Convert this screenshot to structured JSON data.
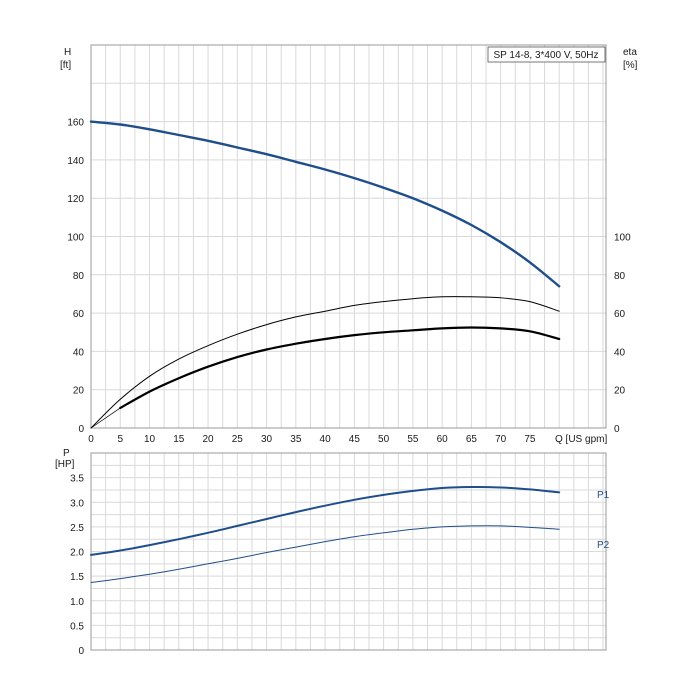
{
  "chart_data": [
    {
      "type": "line",
      "title": "SP 14-8, 3*400 V, 50Hz",
      "x_axis": {
        "label": "Q [US gpm]",
        "min": 0,
        "max": 88,
        "ticks": [
          0,
          5,
          10,
          15,
          20,
          25,
          30,
          35,
          40,
          45,
          50,
          55,
          60,
          65,
          70,
          75
        ]
      },
      "y_left": {
        "label": "H",
        "unit": "[ft]",
        "min": 0,
        "max": 200,
        "ticks": [
          0,
          20,
          40,
          60,
          80,
          100,
          120,
          140,
          160
        ]
      },
      "y_right": {
        "label": "eta",
        "unit": "[%]",
        "min": 0,
        "max": 200,
        "ticks": [
          0,
          20,
          40,
          60,
          80,
          100
        ]
      },
      "grid": true,
      "series": [
        {
          "axis": "left",
          "color": "#1f4e8c",
          "width": 2.4,
          "x": [
            0,
            5,
            10,
            15,
            20,
            25,
            30,
            35,
            40,
            45,
            50,
            55,
            60,
            65,
            70,
            75,
            80
          ],
          "y": [
            160,
            158.5,
            156,
            153,
            150,
            146.5,
            143,
            139,
            135,
            130.5,
            125.5,
            120,
            113.5,
            106,
            97,
            86.5,
            74
          ]
        },
        {
          "axis": "right",
          "color": "#000000",
          "width": 1.0,
          "x": [
            0,
            5,
            10,
            15,
            20,
            25,
            30,
            35,
            40,
            45,
            50,
            55,
            60,
            65,
            70,
            75,
            80
          ],
          "y": [
            0,
            15,
            27,
            36,
            43,
            49,
            54,
            58,
            61,
            64,
            66,
            67.5,
            68.5,
            68.5,
            68,
            66,
            61
          ]
        },
        {
          "axis": "right",
          "color": "#000000",
          "width": 2.2,
          "x": [
            5,
            10,
            15,
            20,
            25,
            30,
            35,
            40,
            45,
            50,
            55,
            60,
            65,
            70,
            75,
            80
          ],
          "y": [
            10.5,
            19,
            26,
            32,
            37,
            41,
            44,
            46.5,
            48.5,
            50,
            51,
            52,
            52.5,
            52,
            50.5,
            46.5
          ]
        },
        {
          "axis": "right",
          "color": "#000000",
          "width": 0.7,
          "x": [
            0,
            5
          ],
          "y": [
            0,
            10.5
          ]
        }
      ]
    },
    {
      "type": "line",
      "x_axis": {
        "min": 0,
        "max": 88
      },
      "y_axis": {
        "label": "P",
        "unit": "[HP]",
        "min": 0,
        "max": 4.0,
        "ticks": [
          "0",
          "0.5",
          "1.0",
          "1.5",
          "2.0",
          "2.5",
          "3.0",
          "3.5"
        ]
      },
      "grid": true,
      "series": [
        {
          "name": "P1",
          "color": "#1f4e8c",
          "width": 2.0,
          "x": [
            0,
            5,
            10,
            15,
            20,
            25,
            30,
            35,
            40,
            45,
            50,
            55,
            60,
            65,
            70,
            75,
            80
          ],
          "y": [
            1.93,
            2.02,
            2.13,
            2.25,
            2.38,
            2.52,
            2.66,
            2.8,
            2.93,
            3.05,
            3.15,
            3.23,
            3.29,
            3.31,
            3.3,
            3.26,
            3.2
          ]
        },
        {
          "name": "P2",
          "color": "#1f4e8c",
          "width": 1.0,
          "x": [
            0,
            5,
            10,
            15,
            20,
            25,
            30,
            35,
            40,
            45,
            50,
            55,
            60,
            65,
            70,
            75,
            80
          ],
          "y": [
            1.37,
            1.45,
            1.54,
            1.64,
            1.75,
            1.86,
            1.98,
            2.09,
            2.2,
            2.3,
            2.38,
            2.45,
            2.5,
            2.52,
            2.52,
            2.49,
            2.45
          ]
        }
      ]
    }
  ]
}
